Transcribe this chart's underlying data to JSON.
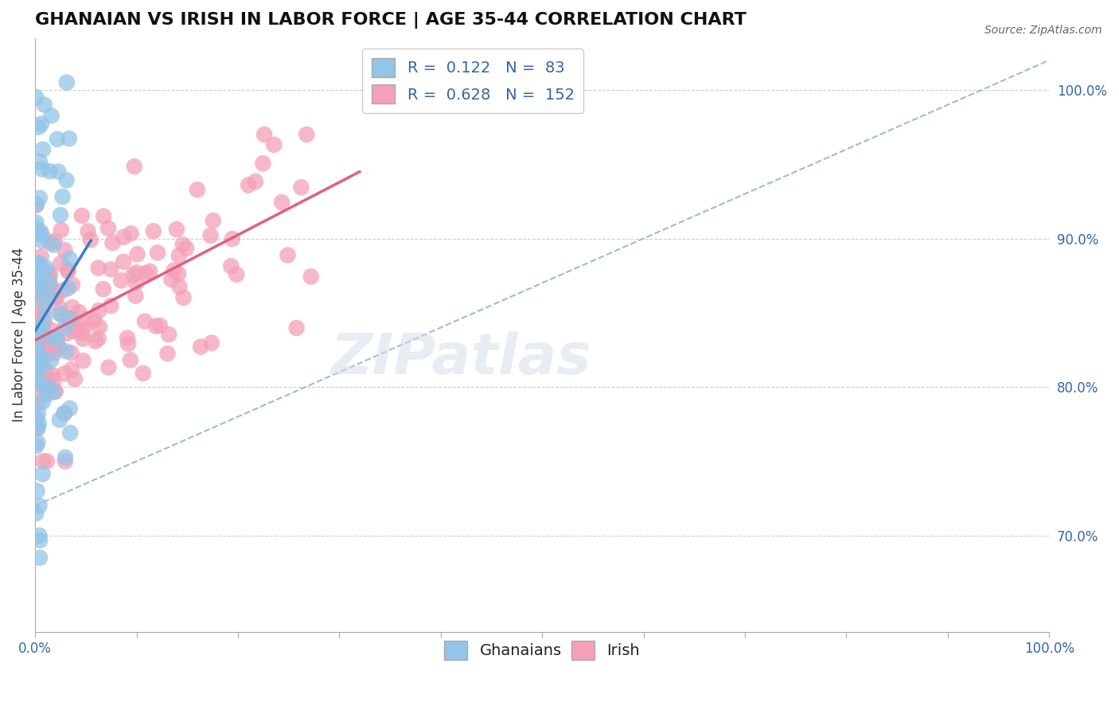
{
  "title": "GHANAIAN VS IRISH IN LABOR FORCE | AGE 35-44 CORRELATION CHART",
  "source_text": "Source: ZipAtlas.com",
  "ylabel": "In Labor Force | Age 35-44",
  "xlim": [
    0.0,
    1.0
  ],
  "ylim": [
    0.635,
    1.035
  ],
  "right_yticks": [
    0.7,
    0.8,
    0.9,
    1.0
  ],
  "right_yticklabels": [
    "70.0%",
    "80.0%",
    "90.0%",
    "100.0%"
  ],
  "ghanaian_R": 0.122,
  "ghanaian_N": 83,
  "irish_R": 0.628,
  "irish_N": 152,
  "ghanaian_color": "#92c5e8",
  "irish_color": "#f4a0b8",
  "ghanaian_line_color": "#3a7ec8",
  "irish_line_color": "#e06080",
  "ref_line_color": "#9bbcdd",
  "grid_color": "#cccccc",
  "background_color": "#ffffff",
  "title_fontsize": 16,
  "label_fontsize": 12,
  "tick_fontsize": 12,
  "legend_fontsize": 14,
  "watermark": "ZIPatlas",
  "watermark_color": "#d0dce8"
}
